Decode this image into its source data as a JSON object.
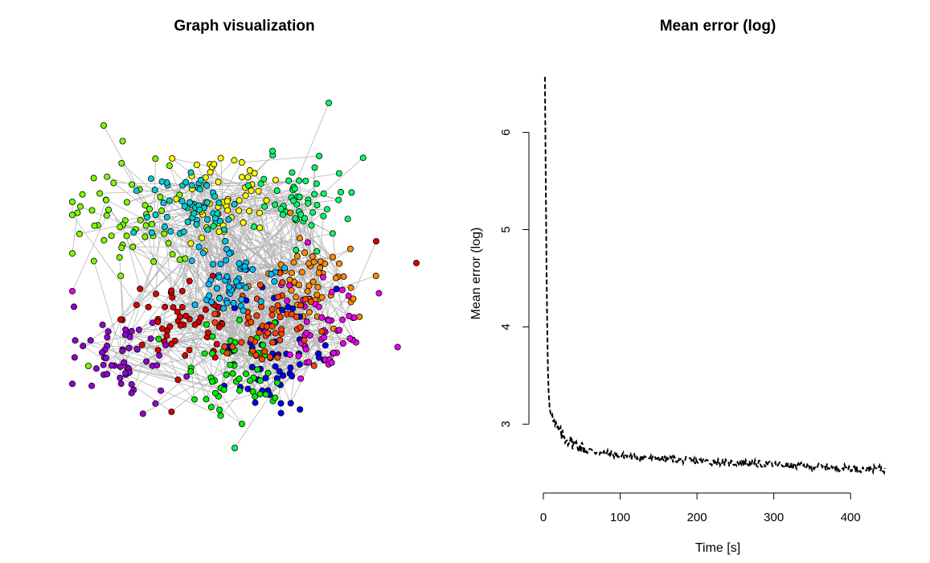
{
  "left_panel": {
    "title": "Graph visualization",
    "node_colors": [
      "#7CFC00",
      "#FFFF00",
      "#00CED1",
      "#00FF66",
      "#FF8C00",
      "#0000EE",
      "#DD0000",
      "#00EE00",
      "#9400D3",
      "#EE00EE",
      "#FF4500",
      "#00BFFF"
    ]
  },
  "chart_data": [
    {
      "type": "line",
      "title": "Mean error (log)",
      "xlabel": "Time  [s]",
      "ylabel": "Mean error (log)",
      "xlim": [
        0,
        450
      ],
      "ylim": [
        2.3,
        6.6
      ],
      "x_ticks": [
        0,
        100,
        200,
        300,
        400
      ],
      "y_ticks": [
        3,
        4,
        5,
        6
      ],
      "line_style": "dashed",
      "series": [
        {
          "x": [
            2,
            3,
            4,
            5,
            6,
            7,
            8,
            10,
            12,
            15,
            20,
            25,
            30,
            40,
            50,
            60,
            70,
            80,
            90,
            100,
            110,
            120,
            130,
            140,
            150,
            160,
            170,
            180,
            190,
            200,
            210,
            220,
            230,
            240,
            250,
            260,
            270,
            280,
            290,
            300,
            310,
            320,
            330,
            340,
            350,
            360,
            370,
            380,
            390,
            400,
            410,
            420,
            430,
            440,
            445
          ],
          "y": [
            6.57,
            5.6,
            4.7,
            4.0,
            3.55,
            3.3,
            3.2,
            3.15,
            3.05,
            2.98,
            2.93,
            2.88,
            2.85,
            2.8,
            2.76,
            2.73,
            2.71,
            2.7,
            2.69,
            2.68,
            2.67,
            2.66,
            2.66,
            2.65,
            2.65,
            2.64,
            2.64,
            2.63,
            2.63,
            2.62,
            2.62,
            2.61,
            2.61,
            2.6,
            2.6,
            2.6,
            2.6,
            2.59,
            2.59,
            2.58,
            2.58,
            2.57,
            2.57,
            2.57,
            2.56,
            2.56,
            2.56,
            2.55,
            2.55,
            2.55,
            2.54,
            2.54,
            2.54,
            2.54,
            2.53
          ]
        }
      ]
    }
  ]
}
